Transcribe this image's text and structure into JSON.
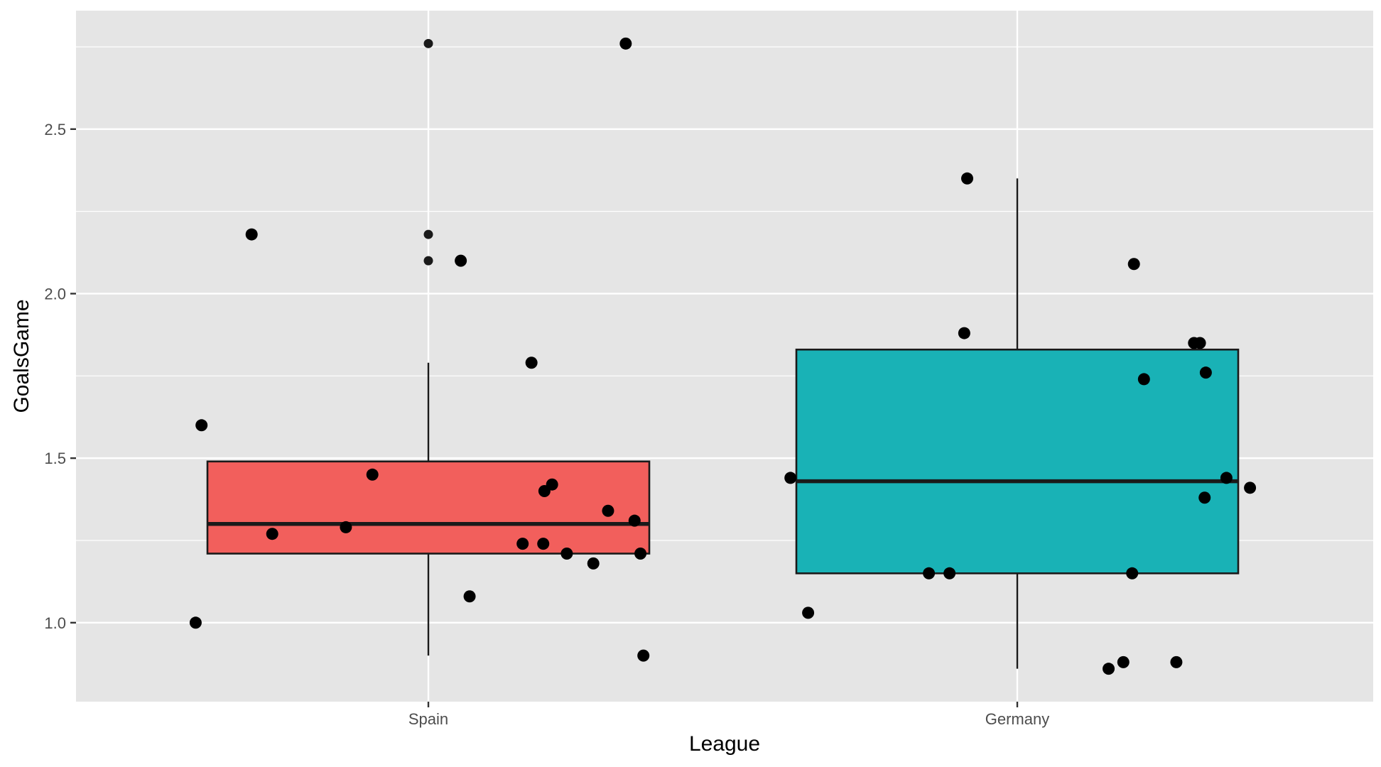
{
  "chart_data": {
    "type": "boxplot",
    "xlabel": "League",
    "ylabel": "GoalsGame",
    "categories": [
      "Spain",
      "Germany"
    ],
    "ylim": [
      0.76,
      2.86
    ],
    "y_ticks": [
      1.0,
      1.5,
      2.0,
      2.5
    ],
    "y_tick_labels": [
      "1.0",
      "1.5",
      "2.0",
      "2.5"
    ],
    "grid": true,
    "background_color": "#e5e5e5",
    "grid_color": "#ffffff",
    "box_colors": [
      "#f25f5c",
      "#19b2b6"
    ],
    "boxes": [
      {
        "category": "Spain",
        "whisker_low": 0.9,
        "q1": 1.21,
        "median": 1.3,
        "q3": 1.49,
        "whisker_high": 1.79,
        "outliers": [
          2.76,
          2.18,
          2.1
        ]
      },
      {
        "category": "Germany",
        "whisker_low": 0.86,
        "q1": 1.15,
        "median": 1.43,
        "q3": 1.83,
        "whisker_high": 2.35,
        "outliers": []
      }
    ],
    "points": [
      {
        "category": "Spain",
        "jitter": -0.395,
        "y": 1.0
      },
      {
        "category": "Spain",
        "jitter": -0.385,
        "y": 1.6
      },
      {
        "category": "Spain",
        "jitter": -0.3,
        "y": 2.18
      },
      {
        "category": "Spain",
        "jitter": -0.265,
        "y": 1.27
      },
      {
        "category": "Spain",
        "jitter": -0.14,
        "y": 1.29
      },
      {
        "category": "Spain",
        "jitter": -0.095,
        "y": 1.45
      },
      {
        "category": "Spain",
        "jitter": 0.055,
        "y": 2.1
      },
      {
        "category": "Spain",
        "jitter": 0.07,
        "y": 1.08
      },
      {
        "category": "Spain",
        "jitter": 0.16,
        "y": 1.24
      },
      {
        "category": "Spain",
        "jitter": 0.175,
        "y": 1.79
      },
      {
        "category": "Spain",
        "jitter": 0.195,
        "y": 1.24
      },
      {
        "category": "Spain",
        "jitter": 0.197,
        "y": 1.4
      },
      {
        "category": "Spain",
        "jitter": 0.21,
        "y": 1.42
      },
      {
        "category": "Spain",
        "jitter": 0.235,
        "y": 1.21
      },
      {
        "category": "Spain",
        "jitter": 0.28,
        "y": 1.18
      },
      {
        "category": "Spain",
        "jitter": 0.305,
        "y": 1.34
      },
      {
        "category": "Spain",
        "jitter": 0.335,
        "y": 2.76
      },
      {
        "category": "Spain",
        "jitter": 0.35,
        "y": 1.31
      },
      {
        "category": "Spain",
        "jitter": 0.36,
        "y": 1.21
      },
      {
        "category": "Spain",
        "jitter": 0.365,
        "y": 0.9
      },
      {
        "category": "Germany",
        "jitter": -0.385,
        "y": 1.44
      },
      {
        "category": "Germany",
        "jitter": -0.355,
        "y": 1.03
      },
      {
        "category": "Germany",
        "jitter": -0.15,
        "y": 1.15
      },
      {
        "category": "Germany",
        "jitter": -0.115,
        "y": 1.15
      },
      {
        "category": "Germany",
        "jitter": -0.09,
        "y": 1.88
      },
      {
        "category": "Germany",
        "jitter": -0.085,
        "y": 2.35
      },
      {
        "category": "Germany",
        "jitter": 0.155,
        "y": 0.86
      },
      {
        "category": "Germany",
        "jitter": 0.18,
        "y": 0.88
      },
      {
        "category": "Germany",
        "jitter": 0.195,
        "y": 1.15
      },
      {
        "category": "Germany",
        "jitter": 0.198,
        "y": 2.09
      },
      {
        "category": "Germany",
        "jitter": 0.215,
        "y": 1.74
      },
      {
        "category": "Germany",
        "jitter": 0.27,
        "y": 0.88
      },
      {
        "category": "Germany",
        "jitter": 0.3,
        "y": 1.85
      },
      {
        "category": "Germany",
        "jitter": 0.31,
        "y": 1.85
      },
      {
        "category": "Germany",
        "jitter": 0.318,
        "y": 1.38
      },
      {
        "category": "Germany",
        "jitter": 0.32,
        "y": 1.76
      },
      {
        "category": "Germany",
        "jitter": 0.355,
        "y": 1.44
      },
      {
        "category": "Germany",
        "jitter": 0.395,
        "y": 1.41
      }
    ]
  }
}
